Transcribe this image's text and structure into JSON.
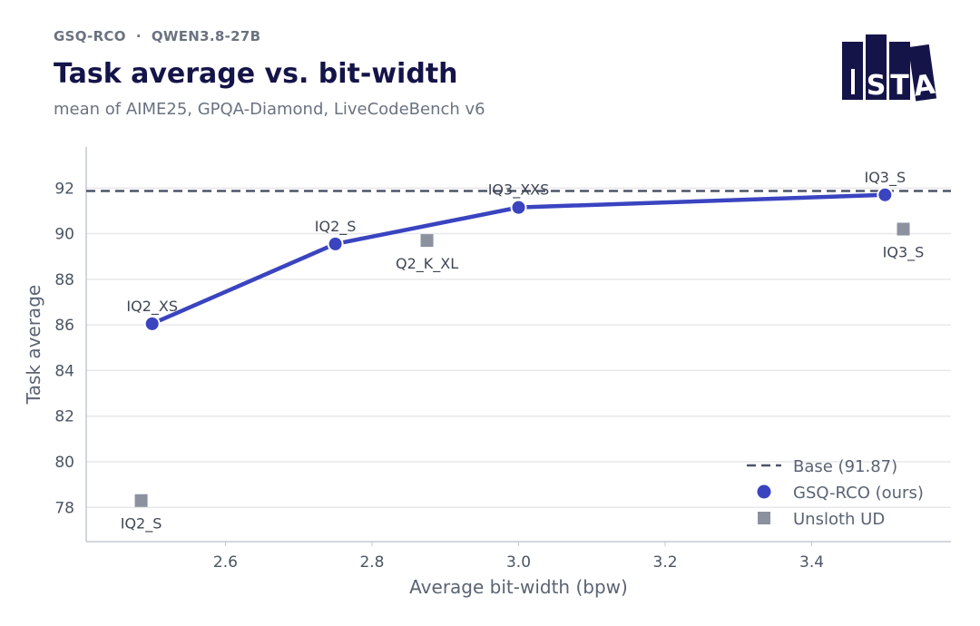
{
  "header": {
    "eyebrow": "GSQ-RCO  ·  QWEN3.8-27B",
    "title": "Task average vs. bit-width",
    "subtitle": "mean of AIME25, GPQA-Diamond, LiveCodeBench v6"
  },
  "logo": {
    "letters": [
      "I",
      "S",
      "T",
      "A"
    ],
    "color": "#151449"
  },
  "colors": {
    "gsq": "#3a44c0",
    "unsloth": "#8b919e",
    "base": "#4b5568",
    "grid": "#e8e8ec",
    "axis": "#c4c8d6"
  },
  "chart_data": {
    "type": "line",
    "xlabel": "Average bit-width (bpw)",
    "ylabel": "Task average",
    "xlim": [
      2.41,
      3.59
    ],
    "ylim": [
      76.5,
      93.8
    ],
    "xticks": [
      2.6,
      2.8,
      3.0,
      3.2,
      3.4
    ],
    "yticks": [
      78,
      80,
      82,
      84,
      86,
      88,
      90,
      92
    ],
    "grid": "horizontal",
    "legend_position": "bottom-right",
    "baseline": {
      "name": "Base (91.87)",
      "value": 91.87
    },
    "series": [
      {
        "name": "GSQ-RCO (ours)",
        "marker": "circle",
        "points": [
          {
            "x": 2.5,
            "y": 86.05,
            "label": "IQ2_XS",
            "label_pos": "above"
          },
          {
            "x": 2.75,
            "y": 89.55,
            "label": "IQ2_S",
            "label_pos": "above"
          },
          {
            "x": 3.0,
            "y": 91.15,
            "label": "IQ3_XXS",
            "label_pos": "above"
          },
          {
            "x": 3.5,
            "y": 91.7,
            "label": "IQ3_S",
            "label_pos": "above"
          }
        ]
      },
      {
        "name": "Unsloth UD",
        "marker": "square",
        "points": [
          {
            "x": 2.485,
            "y": 78.3,
            "label": "IQ2_S",
            "label_pos": "below"
          },
          {
            "x": 2.875,
            "y": 89.7,
            "label": "Q2_K_XL",
            "label_pos": "below"
          },
          {
            "x": 3.525,
            "y": 90.2,
            "label": "IQ3_S",
            "label_pos": "below"
          }
        ]
      }
    ]
  }
}
